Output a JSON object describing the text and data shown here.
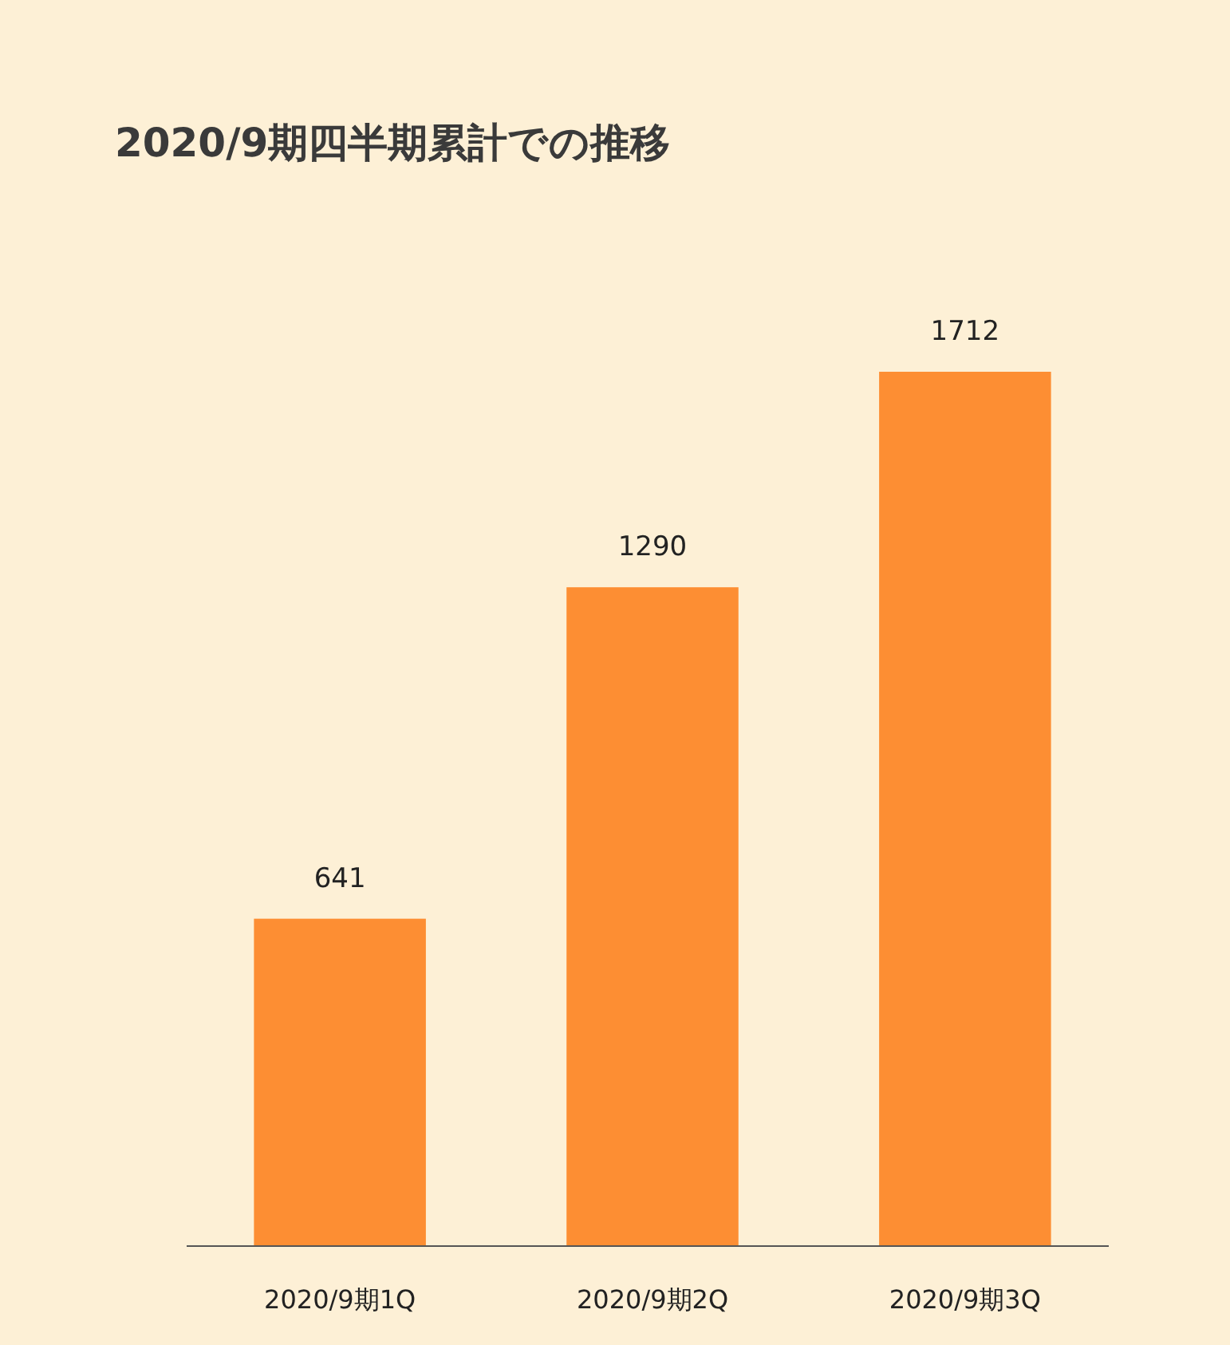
{
  "chart_data": {
    "type": "bar",
    "title": "2020/9期四半期累計での推移",
    "categories": [
      "2020/9期1Q",
      "2020/9期2Q",
      "2020/9期3Q"
    ],
    "values": [
      641,
      1290,
      1712
    ],
    "color": "#fd8e33",
    "data_labels": true
  }
}
